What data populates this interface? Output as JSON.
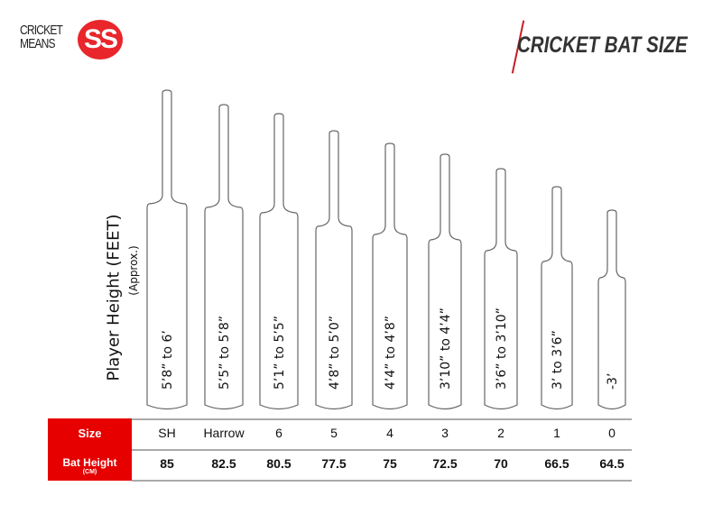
{
  "logo": {
    "text_line1": "CRICKET",
    "text_line2": "MEANS",
    "badge": "SS",
    "color": "#e8262b"
  },
  "header": {
    "title": "CRICKET BAT SIZE",
    "accent": "#c81e24"
  },
  "axis": {
    "ylabel": "Player Height (FEET)",
    "ylabel_note": "(Approx.)"
  },
  "table": {
    "size_label": "Size",
    "height_label": "Bat Height",
    "height_unit": "(CM)",
    "label_bg": "#e60000"
  },
  "bats": [
    {
      "size": "SH",
      "bat_height_cm": "85",
      "player_height": "5’8” to 6’"
    },
    {
      "size": "Harrow",
      "bat_height_cm": "82.5",
      "player_height": "5’5” to 5’8”"
    },
    {
      "size": "6",
      "bat_height_cm": "80.5",
      "player_height": "5’1” to 5’5”"
    },
    {
      "size": "5",
      "bat_height_cm": "77.5",
      "player_height": "4’8” to 5’0”"
    },
    {
      "size": "4",
      "bat_height_cm": "75",
      "player_height": "4’4” to 4’8”"
    },
    {
      "size": "3",
      "bat_height_cm": "72.5",
      "player_height": "3’10” to 4’4”"
    },
    {
      "size": "2",
      "bat_height_cm": "70",
      "player_height": "3’6” to 3’10”"
    },
    {
      "size": "1",
      "bat_height_cm": "66.5",
      "player_height": "3’ to 3’6”"
    },
    {
      "size": "0",
      "bat_height_cm": "64.5",
      "player_height": "-3’"
    }
  ]
}
